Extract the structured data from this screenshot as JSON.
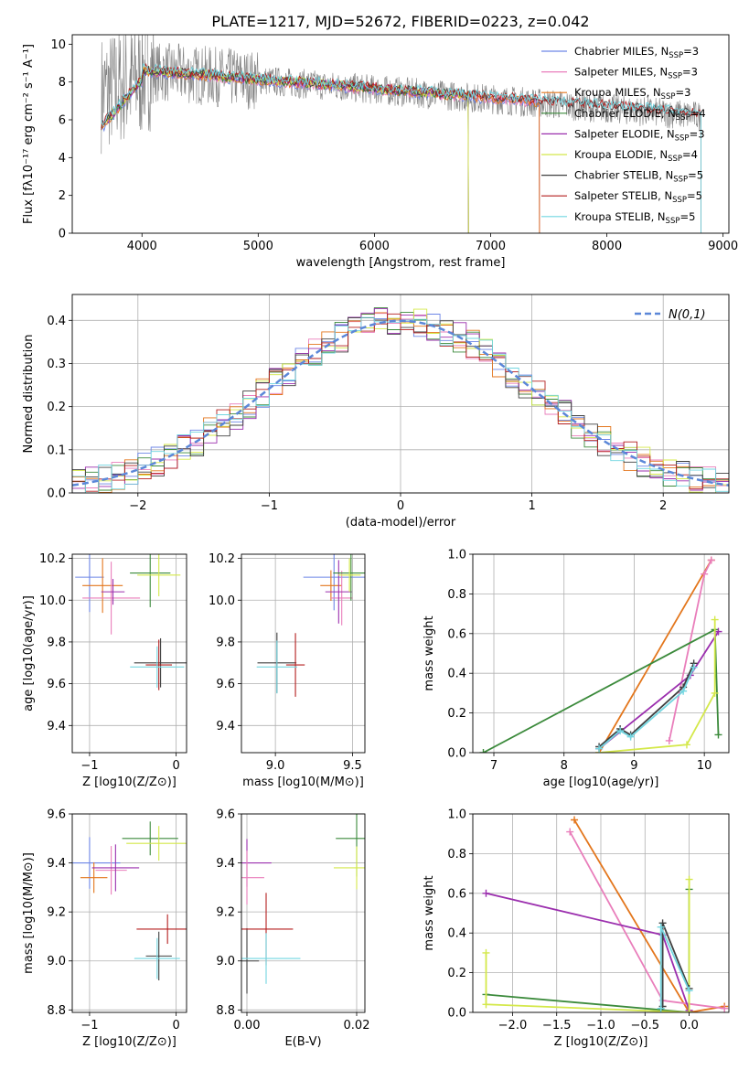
{
  "title": "PLATE=1217, MJD=52672, FIBERID=0223, z=0.042",
  "chart_data": [
    {
      "id": "spectrum",
      "type": "line",
      "xlabel": "wavelength [Angstrom, rest frame]",
      "ylabel": "Flux [fλ10⁻¹⁷ erg cm⁻² s⁻¹ A⁻¹]",
      "xlim": [
        3400,
        9050
      ],
      "ylim": [
        0,
        10.5
      ],
      "xticks": [
        4000,
        5000,
        6000,
        7000,
        8000,
        9000
      ],
      "yticks": [
        0,
        2,
        4,
        6,
        8,
        10
      ],
      "data_trace": {
        "color": "#808080",
        "x_range": [
          3650,
          8810
        ],
        "level_approx": 8.3,
        "noise": "high at blue end"
      },
      "legend_position": "top-right",
      "series": [
        {
          "name": "Chabrier MILES, N_SSP=3",
          "label_main": "Chabrier MILES, N",
          "label_sub": "SSP",
          "label_tail": "=3",
          "color": "#6d86e6",
          "x_range": [
            3650,
            7420
          ]
        },
        {
          "name": "Salpeter MILES, N_SSP=3",
          "label_main": "Salpeter MILES, N",
          "label_sub": "SSP",
          "label_tail": "=3",
          "color": "#e97ebb",
          "x_range": [
            3650,
            7420
          ]
        },
        {
          "name": "Kroupa MILES, N_SSP=3",
          "label_main": "Kroupa MILES, N",
          "label_sub": "SSP",
          "label_tail": "=3",
          "color": "#e3761c",
          "x_range": [
            3650,
            7420
          ]
        },
        {
          "name": "Chabrier ELODIE, N_SSP=4",
          "label_main": "Chabrier ELODIE, N",
          "label_sub": "SSP",
          "label_tail": "=4",
          "color": "#3b8a3b",
          "x_range": [
            3650,
            6810
          ]
        },
        {
          "name": "Salpeter ELODIE, N_SSP=3",
          "label_main": "Salpeter ELODIE, N",
          "label_sub": "SSP",
          "label_tail": "=3",
          "color": "#9b2fae",
          "x_range": [
            3650,
            6810
          ]
        },
        {
          "name": "Kroupa ELODIE, N_SSP=4",
          "label_main": "Kroupa ELODIE, N",
          "label_sub": "SSP",
          "label_tail": "=4",
          "color": "#d4e84a",
          "x_range": [
            3650,
            6810
          ]
        },
        {
          "name": "Chabrier STELIB, N_SSP=5",
          "label_main": "Chabrier STELIB, N",
          "label_sub": "SSP",
          "label_tail": "=5",
          "color": "#404040",
          "x_range": [
            3650,
            8810
          ]
        },
        {
          "name": "Salpeter STELIB, N_SSP=5",
          "label_main": "Salpeter STELIB, N",
          "label_sub": "SSP",
          "label_tail": "=5",
          "color": "#b41e1e",
          "x_range": [
            3650,
            8810
          ]
        },
        {
          "name": "Kroupa STELIB, N_SSP=5",
          "label_main": "Kroupa STELIB, N",
          "label_sub": "SSP",
          "label_tail": "=5",
          "color": "#72d6e0",
          "x_range": [
            3650,
            8810
          ]
        }
      ]
    },
    {
      "id": "residuals",
      "type": "line",
      "xlabel": "(data-model)/error",
      "ylabel": "Normed distribution",
      "xlim": [
        -2.5,
        2.5
      ],
      "ylim": [
        0,
        0.46
      ],
      "xticks": [
        -2,
        -1,
        0,
        1,
        2
      ],
      "yticks": [
        0.0,
        0.1,
        0.2,
        0.3,
        0.4
      ],
      "grid": true,
      "legend_position": "top-right",
      "reference": {
        "label": "N(0,1)",
        "color": "#5b87d8",
        "style": "dashed",
        "mu": 0,
        "sigma": 1
      },
      "histograms": "step histograms for each of the 9 fits"
    },
    {
      "id": "age-vs-Z",
      "type": "scatter",
      "xlabel": "Z [log10(Z/Z⊙)]",
      "ylabel": "age [log10(age/yr)]",
      "xlim": [
        -1.2,
        0.12
      ],
      "ylim": [
        9.27,
        10.22
      ],
      "xticks": [
        -1,
        0
      ],
      "yticks": [
        9.4,
        9.6,
        9.8,
        10.0,
        10.2
      ],
      "grid": true,
      "points": [
        {
          "x": -1.0,
          "y": 10.11,
          "color": "#6d86e6"
        },
        {
          "x": -0.85,
          "y": 10.07,
          "color": "#e3761c"
        },
        {
          "x": -0.75,
          "y": 10.01,
          "color": "#e97ebb"
        },
        {
          "x": -0.73,
          "y": 10.04,
          "color": "#9b2fae"
        },
        {
          "x": -0.3,
          "y": 10.13,
          "color": "#3b8a3b"
        },
        {
          "x": -0.2,
          "y": 10.12,
          "color": "#d4e84a"
        },
        {
          "x": -0.18,
          "y": 9.7,
          "color": "#404040"
        },
        {
          "x": -0.2,
          "y": 9.69,
          "color": "#b41e1e"
        },
        {
          "x": -0.22,
          "y": 9.68,
          "color": "#72d6e0"
        }
      ]
    },
    {
      "id": "age-vs-mass",
      "type": "scatter",
      "xlabel": "mass [log10(M/M⊙)]",
      "ylabel": "",
      "xlim": [
        8.78,
        9.58
      ],
      "ylim": [
        9.27,
        10.22
      ],
      "xticks": [
        9.0,
        9.5
      ],
      "yticks": [
        9.4,
        9.6,
        9.8,
        10.0,
        10.2
      ],
      "grid": true,
      "points": [
        {
          "x": 9.38,
          "y": 10.11,
          "color": "#6d86e6"
        },
        {
          "x": 9.36,
          "y": 10.07,
          "color": "#e3761c"
        },
        {
          "x": 9.43,
          "y": 10.01,
          "color": "#e97ebb"
        },
        {
          "x": 9.41,
          "y": 10.04,
          "color": "#9b2fae"
        },
        {
          "x": 9.49,
          "y": 10.13,
          "color": "#3b8a3b"
        },
        {
          "x": 9.48,
          "y": 10.12,
          "color": "#d4e84a"
        },
        {
          "x": 9.01,
          "y": 9.7,
          "color": "#404040"
        },
        {
          "x": 9.13,
          "y": 9.69,
          "color": "#b41e1e"
        },
        {
          "x": 9.01,
          "y": 9.68,
          "color": "#72d6e0"
        }
      ]
    },
    {
      "id": "massweight-vs-age",
      "type": "line",
      "xlabel": "age [log10(age/yr)]",
      "ylabel": "mass weight",
      "xlim": [
        6.7,
        10.35
      ],
      "ylim": [
        0,
        1.0
      ],
      "xticks": [
        7,
        8,
        9,
        10
      ],
      "yticks": [
        0.0,
        0.2,
        0.4,
        0.6,
        0.8,
        1.0
      ],
      "grid": true,
      "series": [
        {
          "color": "#e3761c",
          "points": [
            [
              8.5,
              0.0
            ],
            [
              10.1,
              0.97
            ]
          ]
        },
        {
          "color": "#e97ebb",
          "points": [
            [
              9.5,
              0.06
            ],
            [
              10.0,
              0.9
            ],
            [
              10.1,
              0.97
            ]
          ]
        },
        {
          "color": "#3b8a3b",
          "points": [
            [
              6.85,
              0.0
            ],
            [
              10.15,
              0.62
            ],
            [
              10.2,
              0.09
            ]
          ]
        },
        {
          "color": "#9b2fae",
          "points": [
            [
              8.5,
              0.02
            ],
            [
              9.8,
              0.39
            ],
            [
              10.2,
              0.61
            ]
          ]
        },
        {
          "color": "#d4e84a",
          "points": [
            [
              8.5,
              0.0
            ],
            [
              9.75,
              0.04
            ],
            [
              10.15,
              0.3
            ],
            [
              10.15,
              0.67
            ]
          ]
        },
        {
          "color": "#404040",
          "points": [
            [
              8.5,
              0.03
            ],
            [
              8.8,
              0.12
            ],
            [
              8.95,
              0.09
            ],
            [
              9.7,
              0.33
            ],
            [
              9.85,
              0.45
            ]
          ]
        },
        {
          "color": "#72d6e0",
          "points": [
            [
              8.5,
              0.02
            ],
            [
              8.8,
              0.11
            ],
            [
              8.95,
              0.08
            ],
            [
              9.7,
              0.31
            ],
            [
              9.85,
              0.43
            ]
          ]
        }
      ]
    },
    {
      "id": "mass-vs-Z",
      "type": "scatter",
      "xlabel": "Z [log10(Z/Z⊙)]",
      "ylabel": "mass [log10(M/M⊙)]",
      "xlim": [
        -1.2,
        0.12
      ],
      "ylim": [
        8.79,
        9.6
      ],
      "xticks": [
        -1,
        0
      ],
      "yticks": [
        8.8,
        9.0,
        9.2,
        9.4,
        9.6
      ],
      "grid": true,
      "points": [
        {
          "x": -1.0,
          "y": 9.4,
          "color": "#6d86e6"
        },
        {
          "x": -0.95,
          "y": 9.34,
          "color": "#e3761c"
        },
        {
          "x": -0.75,
          "y": 9.37,
          "color": "#e97ebb"
        },
        {
          "x": -0.7,
          "y": 9.38,
          "color": "#9b2fae"
        },
        {
          "x": -0.3,
          "y": 9.5,
          "color": "#3b8a3b"
        },
        {
          "x": -0.2,
          "y": 9.48,
          "color": "#d4e84a"
        },
        {
          "x": -0.2,
          "y": 9.02,
          "color": "#404040"
        },
        {
          "x": -0.1,
          "y": 9.13,
          "color": "#b41e1e"
        },
        {
          "x": -0.22,
          "y": 9.01,
          "color": "#72d6e0"
        }
      ]
    },
    {
      "id": "mass-vs-ebv",
      "type": "scatter",
      "xlabel": "E(B-V)",
      "ylabel": "",
      "xlim": [
        -0.001,
        0.0215
      ],
      "ylim": [
        8.79,
        9.6
      ],
      "xticks": [
        0.0,
        0.02
      ],
      "yticks": [
        8.8,
        9.0,
        9.2,
        9.4,
        9.6
      ],
      "grid": true,
      "points": [
        {
          "x": 0.0,
          "y": 9.4,
          "color": "#9b2fae"
        },
        {
          "x": 0.0,
          "y": 9.34,
          "color": "#e97ebb"
        },
        {
          "x": 0.0,
          "y": 9.0,
          "color": "#404040"
        },
        {
          "x": 0.0035,
          "y": 9.13,
          "color": "#b41e1e"
        },
        {
          "x": 0.0035,
          "y": 9.01,
          "color": "#72d6e0"
        },
        {
          "x": 0.02,
          "y": 9.5,
          "color": "#3b8a3b"
        },
        {
          "x": 0.02,
          "y": 9.38,
          "color": "#d4e84a"
        }
      ]
    },
    {
      "id": "massweight-vs-Z",
      "type": "line",
      "xlabel": "Z [log10(Z/Z⊙)]",
      "ylabel": "mass weight",
      "xlim": [
        -2.45,
        0.45
      ],
      "ylim": [
        0,
        1.0
      ],
      "xticks": [
        -2.0,
        -1.5,
        -1.0,
        -0.5,
        0.0
      ],
      "yticks": [
        0.0,
        0.2,
        0.4,
        0.6,
        0.8,
        1.0
      ],
      "grid": true,
      "series": [
        {
          "color": "#e3761c",
          "points": [
            [
              -1.3,
              0.97
            ],
            [
              0.0,
              0.0
            ],
            [
              0.4,
              0.03
            ]
          ]
        },
        {
          "color": "#e97ebb",
          "points": [
            [
              -1.35,
              0.91
            ],
            [
              -0.3,
              0.06
            ],
            [
              0.4,
              0.02
            ]
          ]
        },
        {
          "color": "#9b2fae",
          "points": [
            [
              -2.3,
              0.6
            ],
            [
              -0.3,
              0.39
            ],
            [
              0.0,
              0.01
            ]
          ]
        },
        {
          "color": "#3b8a3b",
          "points": [
            [
              -2.3,
              0.09
            ],
            [
              0.0,
              0.0
            ],
            [
              0.0,
              0.62
            ]
          ]
        },
        {
          "color": "#d4e84a",
          "points": [
            [
              -2.3,
              0.3
            ],
            [
              -2.3,
              0.04
            ],
            [
              0.0,
              0.0
            ],
            [
              0.0,
              0.67
            ]
          ]
        },
        {
          "color": "#404040",
          "points": [
            [
              -0.3,
              0.03
            ],
            [
              -0.3,
              0.45
            ],
            [
              0.0,
              0.12
            ]
          ]
        },
        {
          "color": "#72d6e0",
          "points": [
            [
              -0.32,
              0.02
            ],
            [
              -0.32,
              0.43
            ],
            [
              0.0,
              0.11
            ]
          ]
        }
      ]
    }
  ]
}
